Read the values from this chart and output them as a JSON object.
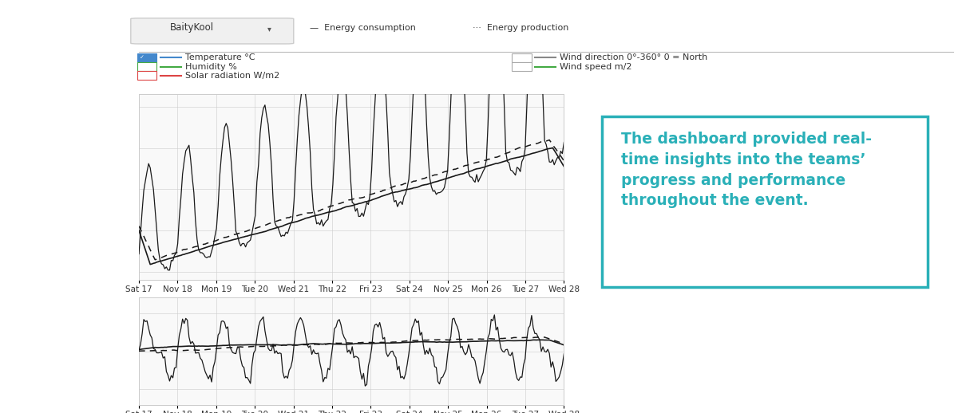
{
  "bg_color": "#ffffff",
  "teal_color": "#2ab0b8",
  "text_color": "#333333",
  "grid_color": "#cccccc",
  "chart_bg": "#f9f9f9",
  "x_labels": [
    "Sat 17",
    "Nov 18",
    "Mon 19",
    "Tue 20",
    "Wed 21",
    "Thu 22",
    "Fri 23",
    "Sat 24",
    "Nov 25",
    "Mon 26",
    "Tue 27",
    "Wed 28"
  ],
  "n_points": 264,
  "quote_text": "The dashboard provided real-\ntime insights into the teams’\nprogress and performance\nthroughout the event.",
  "legend_items_left": [
    {
      "label": "Temperature °C",
      "color": "#4488cc",
      "style": "solid",
      "checkbox": true,
      "checked": true
    },
    {
      "label": "Humidity %",
      "color": "#44aa44",
      "style": "solid",
      "checkbox": true,
      "checked": false
    },
    {
      "label": "Solar radiation W/m2",
      "color": "#dd4444",
      "style": "solid",
      "checkbox": true,
      "checked": false
    }
  ],
  "legend_items_right": [
    {
      "label": "Wind direction 0°-360° 0 = North",
      "color": "#888888",
      "style": "solid",
      "checkbox": true
    },
    {
      "label": "Wind speed m/2",
      "color": "#44aa44",
      "style": "solid",
      "checkbox": true
    }
  ],
  "toolbar_label": "BaityKool",
  "energy_consumption_label": "— Energy consumption",
  "energy_production_label": "··· Energy production"
}
